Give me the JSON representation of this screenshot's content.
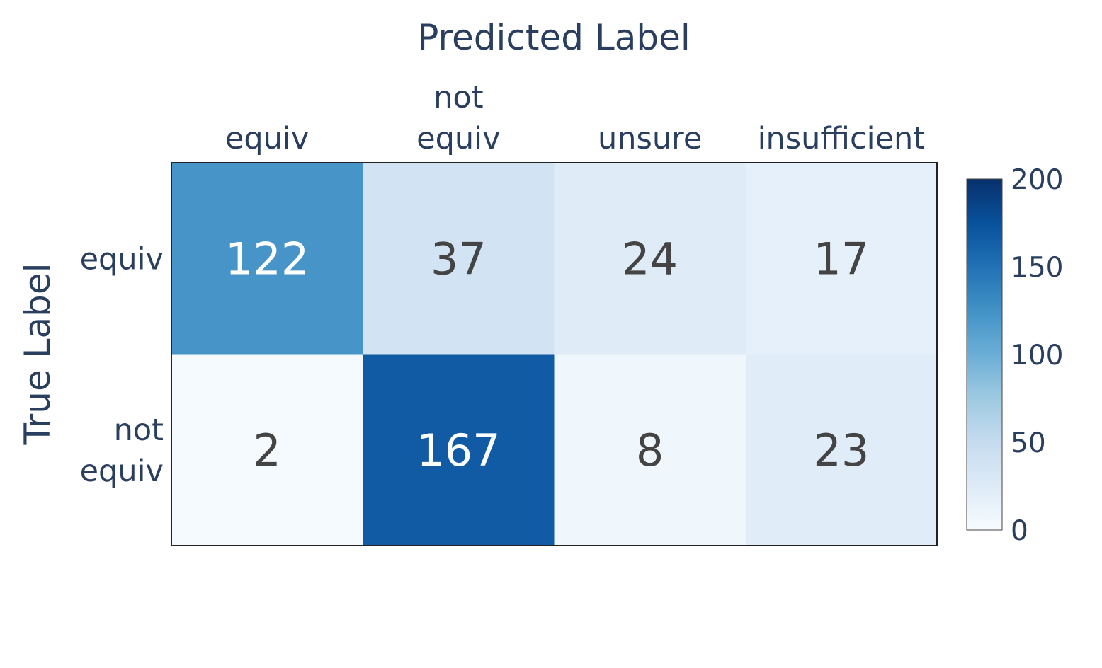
{
  "chart_data": {
    "type": "heatmap",
    "xlabel": "Predicted Label",
    "ylabel": "True Label",
    "x_categories": [
      [
        "equiv"
      ],
      [
        "not",
        "equiv"
      ],
      [
        "unsure"
      ],
      [
        "insufficient"
      ]
    ],
    "y_categories": [
      [
        "equiv"
      ],
      [
        "not",
        "equiv"
      ]
    ],
    "values": [
      [
        122,
        37,
        24,
        17
      ],
      [
        2,
        167,
        8,
        23
      ]
    ],
    "colorscale": "Blues",
    "zlim": [
      0,
      200
    ],
    "colorbar_ticks": [
      "0",
      "50",
      "100",
      "150",
      "200"
    ],
    "colors": {
      "text_axis": "#2a3f5f",
      "text_cell_dark": "#444444",
      "text_cell_light": "#ffffff"
    }
  }
}
